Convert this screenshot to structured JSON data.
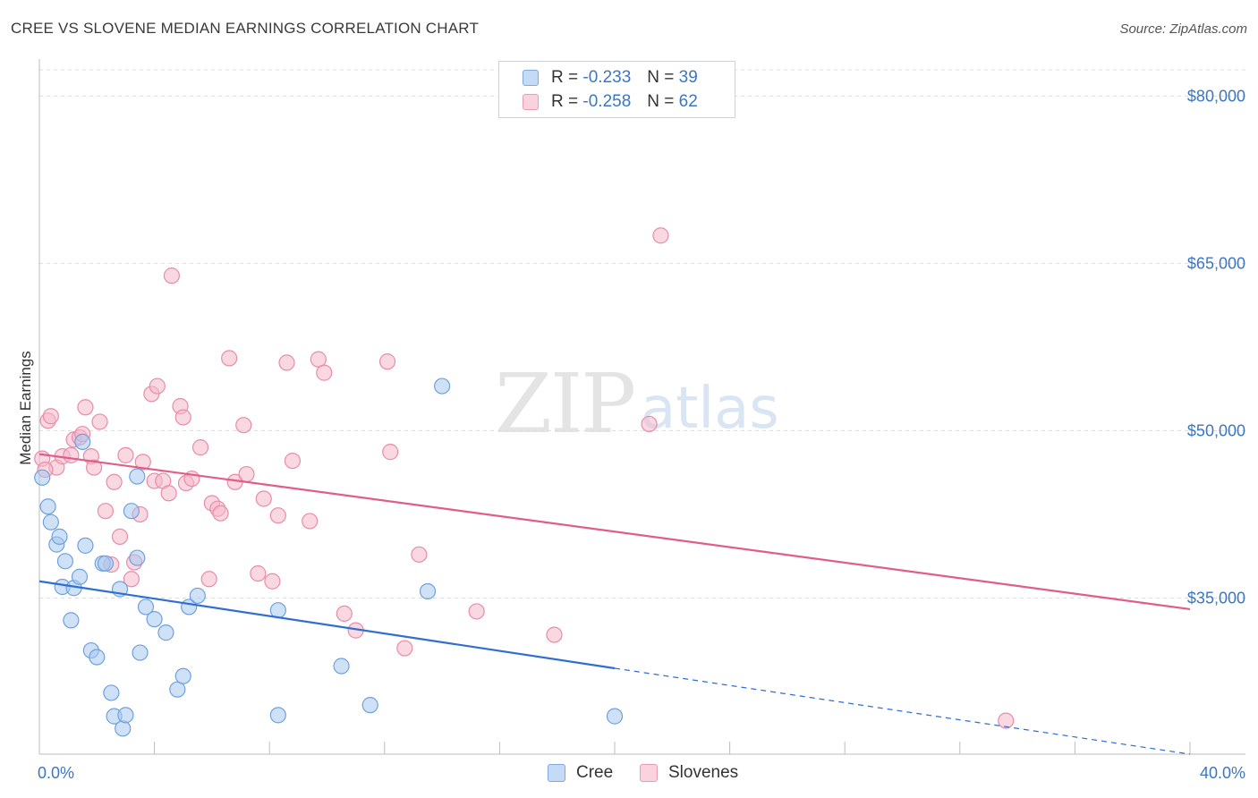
{
  "header": {
    "title": "CREE VS SLOVENE MEDIAN EARNINGS CORRELATION CHART",
    "source": "Source: ZipAtlas.com"
  },
  "watermark": {
    "zip": "ZIP",
    "atlas": "atlas"
  },
  "legend_top": {
    "rows": [
      {
        "r_label": "R =",
        "r_value": "-0.233",
        "n_label": "N =",
        "n_value": "39",
        "color": "#a8c8f0"
      },
      {
        "r_label": "R =",
        "r_value": "-0.258",
        "n_label": "N =",
        "n_value": "62",
        "color": "#f5b8cb"
      }
    ]
  },
  "legend_bottom": {
    "cree": "Cree",
    "slovenes": "Slovenes"
  },
  "colors": {
    "cree_fill": "#a8c8f0",
    "cree_stroke": "#6fa1dc",
    "cree_line": "#2f6fd0",
    "slovene_fill": "#f5b8cb",
    "slovene_stroke": "#e88ca8",
    "slovene_line": "#e05d8a",
    "grid": "#dcdcdc",
    "tick_text": "#3b76c4"
  },
  "chart_data": {
    "type": "scatter",
    "title": "CREE VS SLOVENE MEDIAN EARNINGS CORRELATION CHART",
    "xlabel": "",
    "ylabel": "Median Earnings",
    "xlim": [
      0,
      40
    ],
    "ylim": [
      21000,
      83000
    ],
    "x_tick_labels": [
      "0.0%",
      "40.0%"
    ],
    "y_ticks": [
      35000,
      50000,
      65000,
      80000
    ],
    "y_tick_labels": [
      "$35,000",
      "$50,000",
      "$65,000",
      "$80,000"
    ],
    "grid": true,
    "legend": "top-center",
    "series": [
      {
        "name": "Cree",
        "R": -0.233,
        "N": 39,
        "trend": {
          "x0": 0,
          "y0": 36500,
          "x1": 20,
          "y1": 28700,
          "dash_to_x": 40,
          "dash_to_y": 21000
        },
        "points": [
          [
            0.1,
            45800
          ],
          [
            0.3,
            43200
          ],
          [
            0.4,
            41800
          ],
          [
            0.6,
            39800
          ],
          [
            0.7,
            40500
          ],
          [
            0.8,
            36000
          ],
          [
            0.9,
            38300
          ],
          [
            1.1,
            33000
          ],
          [
            1.2,
            35900
          ],
          [
            1.4,
            36900
          ],
          [
            1.5,
            49000
          ],
          [
            1.6,
            39700
          ],
          [
            1.8,
            30300
          ],
          [
            2.0,
            29700
          ],
          [
            2.2,
            38100
          ],
          [
            2.3,
            38100
          ],
          [
            2.5,
            26500
          ],
          [
            2.6,
            24400
          ],
          [
            2.8,
            35800
          ],
          [
            2.9,
            23300
          ],
          [
            3.0,
            24500
          ],
          [
            3.2,
            42800
          ],
          [
            3.4,
            45900
          ],
          [
            3.4,
            38600
          ],
          [
            3.5,
            30100
          ],
          [
            3.7,
            34200
          ],
          [
            4.0,
            33100
          ],
          [
            4.4,
            31900
          ],
          [
            4.8,
            26800
          ],
          [
            5.0,
            28000
          ],
          [
            5.2,
            34200
          ],
          [
            5.5,
            35200
          ],
          [
            8.3,
            24500
          ],
          [
            8.3,
            33900
          ],
          [
            10.5,
            28900
          ],
          [
            11.5,
            25400
          ],
          [
            13.5,
            35600
          ],
          [
            14.0,
            54000
          ],
          [
            20.0,
            24400
          ]
        ]
      },
      {
        "name": "Slovenes",
        "R": -0.258,
        "N": 62,
        "trend": {
          "x0": 0,
          "y0": 47900,
          "x1": 40,
          "y1": 34000
        },
        "points": [
          [
            0.1,
            47500
          ],
          [
            0.3,
            50900
          ],
          [
            0.4,
            51300
          ],
          [
            0.6,
            46700
          ],
          [
            0.8,
            47700
          ],
          [
            1.1,
            47800
          ],
          [
            1.2,
            49200
          ],
          [
            1.4,
            49400
          ],
          [
            1.5,
            49700
          ],
          [
            1.6,
            52100
          ],
          [
            1.8,
            47700
          ],
          [
            1.9,
            46700
          ],
          [
            2.1,
            50800
          ],
          [
            2.3,
            42800
          ],
          [
            2.5,
            38000
          ],
          [
            2.6,
            45400
          ],
          [
            2.8,
            40500
          ],
          [
            3.0,
            47800
          ],
          [
            3.2,
            36700
          ],
          [
            3.3,
            38200
          ],
          [
            3.5,
            42500
          ],
          [
            3.6,
            47200
          ],
          [
            3.9,
            53300
          ],
          [
            4.0,
            45500
          ],
          [
            4.1,
            54000
          ],
          [
            4.3,
            45500
          ],
          [
            4.5,
            44400
          ],
          [
            4.6,
            63900
          ],
          [
            4.9,
            52200
          ],
          [
            5.0,
            51200
          ],
          [
            5.1,
            45300
          ],
          [
            5.3,
            45700
          ],
          [
            5.6,
            48500
          ],
          [
            5.9,
            36700
          ],
          [
            6.0,
            43500
          ],
          [
            6.2,
            43000
          ],
          [
            6.3,
            42600
          ],
          [
            6.6,
            56500
          ],
          [
            6.8,
            45400
          ],
          [
            7.1,
            50500
          ],
          [
            7.2,
            46100
          ],
          [
            7.6,
            37200
          ],
          [
            7.8,
            43900
          ],
          [
            8.1,
            36500
          ],
          [
            8.3,
            42400
          ],
          [
            8.6,
            56100
          ],
          [
            8.8,
            47300
          ],
          [
            9.4,
            41900
          ],
          [
            9.7,
            56400
          ],
          [
            9.9,
            55200
          ],
          [
            10.6,
            33600
          ],
          [
            11.0,
            32100
          ],
          [
            12.1,
            56200
          ],
          [
            12.2,
            48100
          ],
          [
            12.7,
            30500
          ],
          [
            13.2,
            38900
          ],
          [
            15.2,
            33800
          ],
          [
            17.9,
            31700
          ],
          [
            21.2,
            50600
          ],
          [
            21.6,
            67500
          ],
          [
            33.6,
            24000
          ],
          [
            0.2,
            46500
          ]
        ]
      }
    ]
  }
}
